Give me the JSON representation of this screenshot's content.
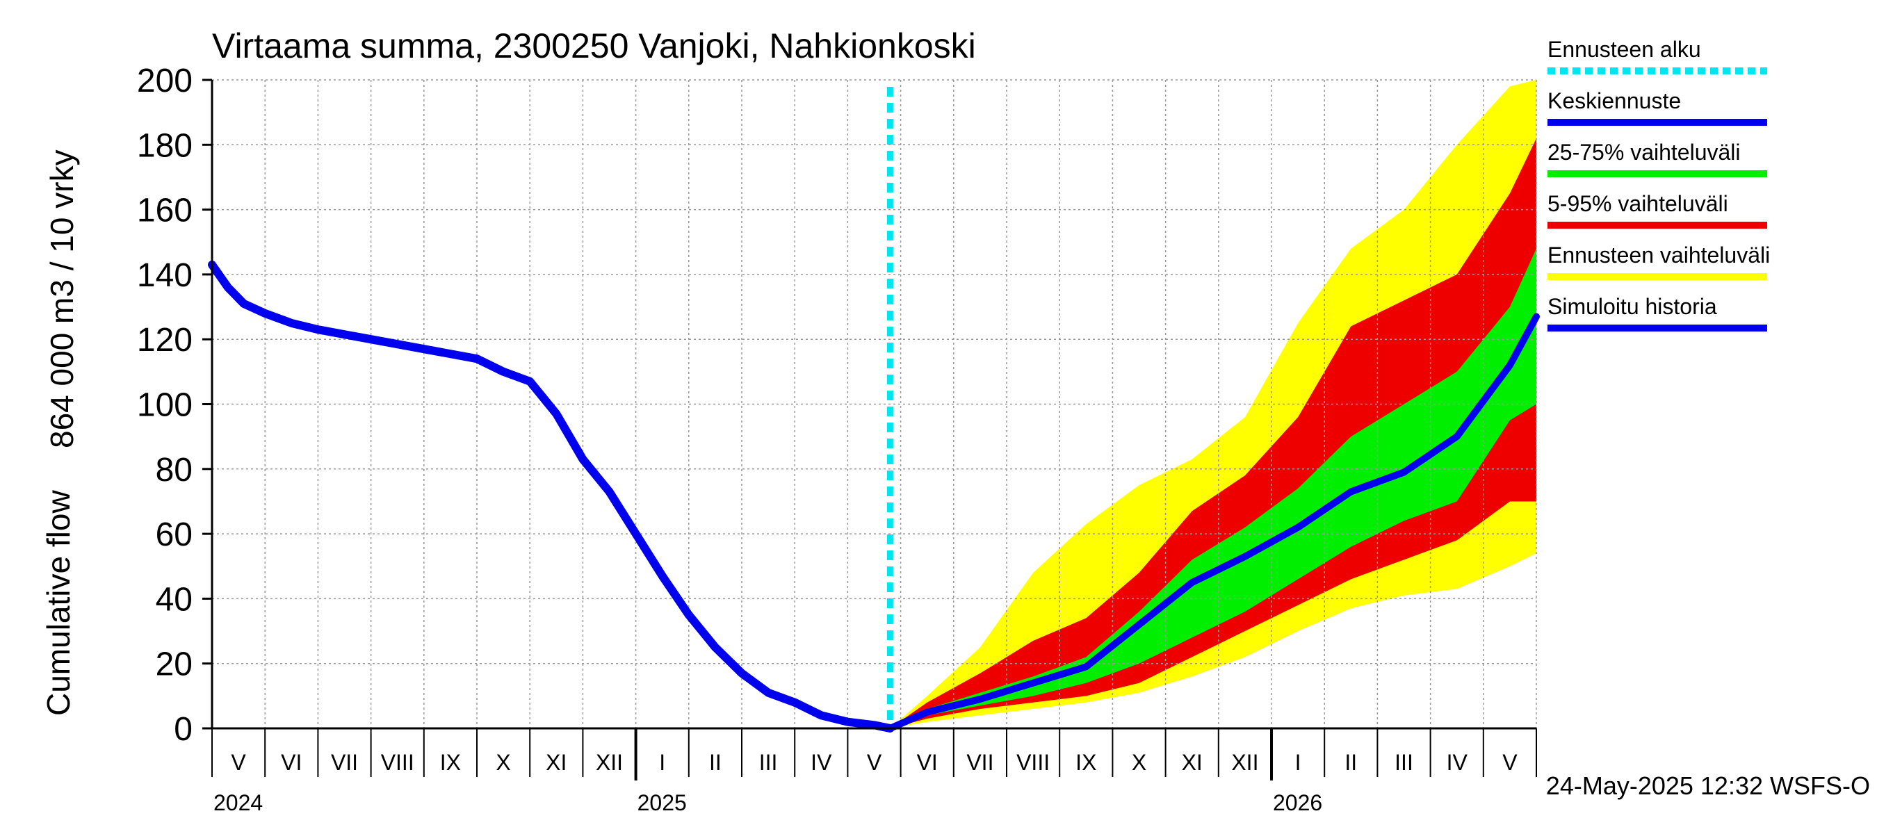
{
  "chart_data": {
    "type": "area",
    "title": "Virtaama summa, 2300250 Vanjoki, Nahkionkoski",
    "ylabel_fi": "864 000 m3 / 10 vrky",
    "ylabel_en": "Cumulative flow",
    "ylim": [
      0,
      200
    ],
    "yticks": [
      0,
      20,
      40,
      60,
      80,
      100,
      120,
      140,
      160,
      180,
      200
    ],
    "xlim": [
      0,
      25
    ],
    "forecast_start": 12.8,
    "months": [
      {
        "label": "V",
        "x": 0.5
      },
      {
        "label": "VI",
        "x": 1.5
      },
      {
        "label": "VII",
        "x": 2.5
      },
      {
        "label": "VIII",
        "x": 3.5
      },
      {
        "label": "IX",
        "x": 4.5
      },
      {
        "label": "X",
        "x": 5.5
      },
      {
        "label": "XI",
        "x": 6.5
      },
      {
        "label": "XII",
        "x": 7.5
      },
      {
        "label": "I",
        "x": 8.5
      },
      {
        "label": "II",
        "x": 9.5
      },
      {
        "label": "III",
        "x": 10.5
      },
      {
        "label": "IV",
        "x": 11.5
      },
      {
        "label": "V",
        "x": 12.5
      },
      {
        "label": "VI",
        "x": 13.5
      },
      {
        "label": "VII",
        "x": 14.5
      },
      {
        "label": "VIII",
        "x": 15.5
      },
      {
        "label": "IX",
        "x": 16.5
      },
      {
        "label": "X",
        "x": 17.5
      },
      {
        "label": "XI",
        "x": 18.5
      },
      {
        "label": "XII",
        "x": 19.5
      },
      {
        "label": "I",
        "x": 20.5
      },
      {
        "label": "II",
        "x": 21.5
      },
      {
        "label": "III",
        "x": 22.5
      },
      {
        "label": "IV",
        "x": 23.5
      },
      {
        "label": "V",
        "x": 24.5
      }
    ],
    "year_boundaries": [
      8,
      20
    ],
    "years": [
      {
        "label": "2024",
        "x": 0
      },
      {
        "label": "2025",
        "x": 8
      },
      {
        "label": "2026",
        "x": 20
      }
    ],
    "history": {
      "name": "Simuloitu historia",
      "x": [
        0,
        0.3,
        0.6,
        1,
        1.5,
        2,
        3,
        4,
        5,
        5.5,
        6,
        6.3,
        6.5,
        7,
        7.5,
        8,
        8.5,
        9,
        9.5,
        10,
        10.5,
        11,
        11.5,
        12,
        12.5,
        12.8
      ],
      "y": [
        143,
        136,
        131,
        128,
        125,
        123,
        120,
        117,
        114,
        110,
        107,
        101,
        97,
        83,
        73,
        60,
        47,
        35,
        25,
        17,
        11,
        8,
        4,
        2,
        1,
        0
      ]
    },
    "forecast": {
      "x": [
        12.8,
        13.5,
        14.5,
        15.5,
        16.5,
        17.5,
        18.5,
        19.5,
        20.5,
        21.5,
        22.5,
        23.5,
        24.5,
        25
      ],
      "median": {
        "name": "Keskiennuste",
        "y": [
          0,
          5,
          9,
          14,
          19,
          32,
          45,
          53,
          62,
          73,
          79,
          90,
          112,
          127
        ]
      },
      "p25_75": {
        "name": "25-75% vaihteluväli",
        "low": [
          0,
          4,
          7,
          10,
          14,
          20,
          28,
          36,
          46,
          56,
          64,
          70,
          95,
          100
        ],
        "high": [
          0,
          6,
          11,
          16,
          22,
          36,
          52,
          62,
          74,
          90,
          100,
          110,
          130,
          148
        ]
      },
      "p5_95": {
        "name": "5-95% vaihteluväli",
        "low": [
          0,
          3,
          6,
          8,
          10,
          14,
          22,
          30,
          38,
          46,
          52,
          58,
          70,
          70
        ],
        "high": [
          0,
          8,
          17,
          27,
          34,
          48,
          67,
          78,
          96,
          124,
          132,
          140,
          165,
          182
        ]
      },
      "range": {
        "name": "Ennusteen vaihteluväli",
        "low": [
          0,
          2,
          4,
          6,
          8,
          11,
          16,
          22,
          30,
          37,
          41,
          43,
          50,
          54
        ],
        "high": [
          0,
          10,
          25,
          48,
          63,
          75,
          83,
          96,
          125,
          148,
          160,
          180,
          198,
          200
        ]
      }
    },
    "legend": [
      {
        "label": "Ennusteen alku",
        "color": "#00e5ee",
        "style": "dotted"
      },
      {
        "label": "Keskiennuste",
        "color": "#0000ee",
        "style": "solid"
      },
      {
        "label": "25-75% vaihteluväli",
        "color": "#00ee00",
        "style": "solid"
      },
      {
        "label": "5-95% vaihteluväli",
        "color": "#ee0000",
        "style": "solid"
      },
      {
        "label": "Ennusteen vaihteluväli",
        "color": "#ffff00",
        "style": "solid"
      },
      {
        "label": "Simuloitu historia",
        "color": "#0000ee",
        "style": "solid"
      }
    ],
    "footer": "24-May-2025 12:32 WSFS-O",
    "colors": {
      "history": "#0000ee",
      "median": "#0000ee",
      "band_25_75": "#00ee00",
      "band_5_95": "#ee0000",
      "band_range": "#ffff00",
      "forecast_start": "#00e5ee",
      "grid": "#999999"
    }
  }
}
